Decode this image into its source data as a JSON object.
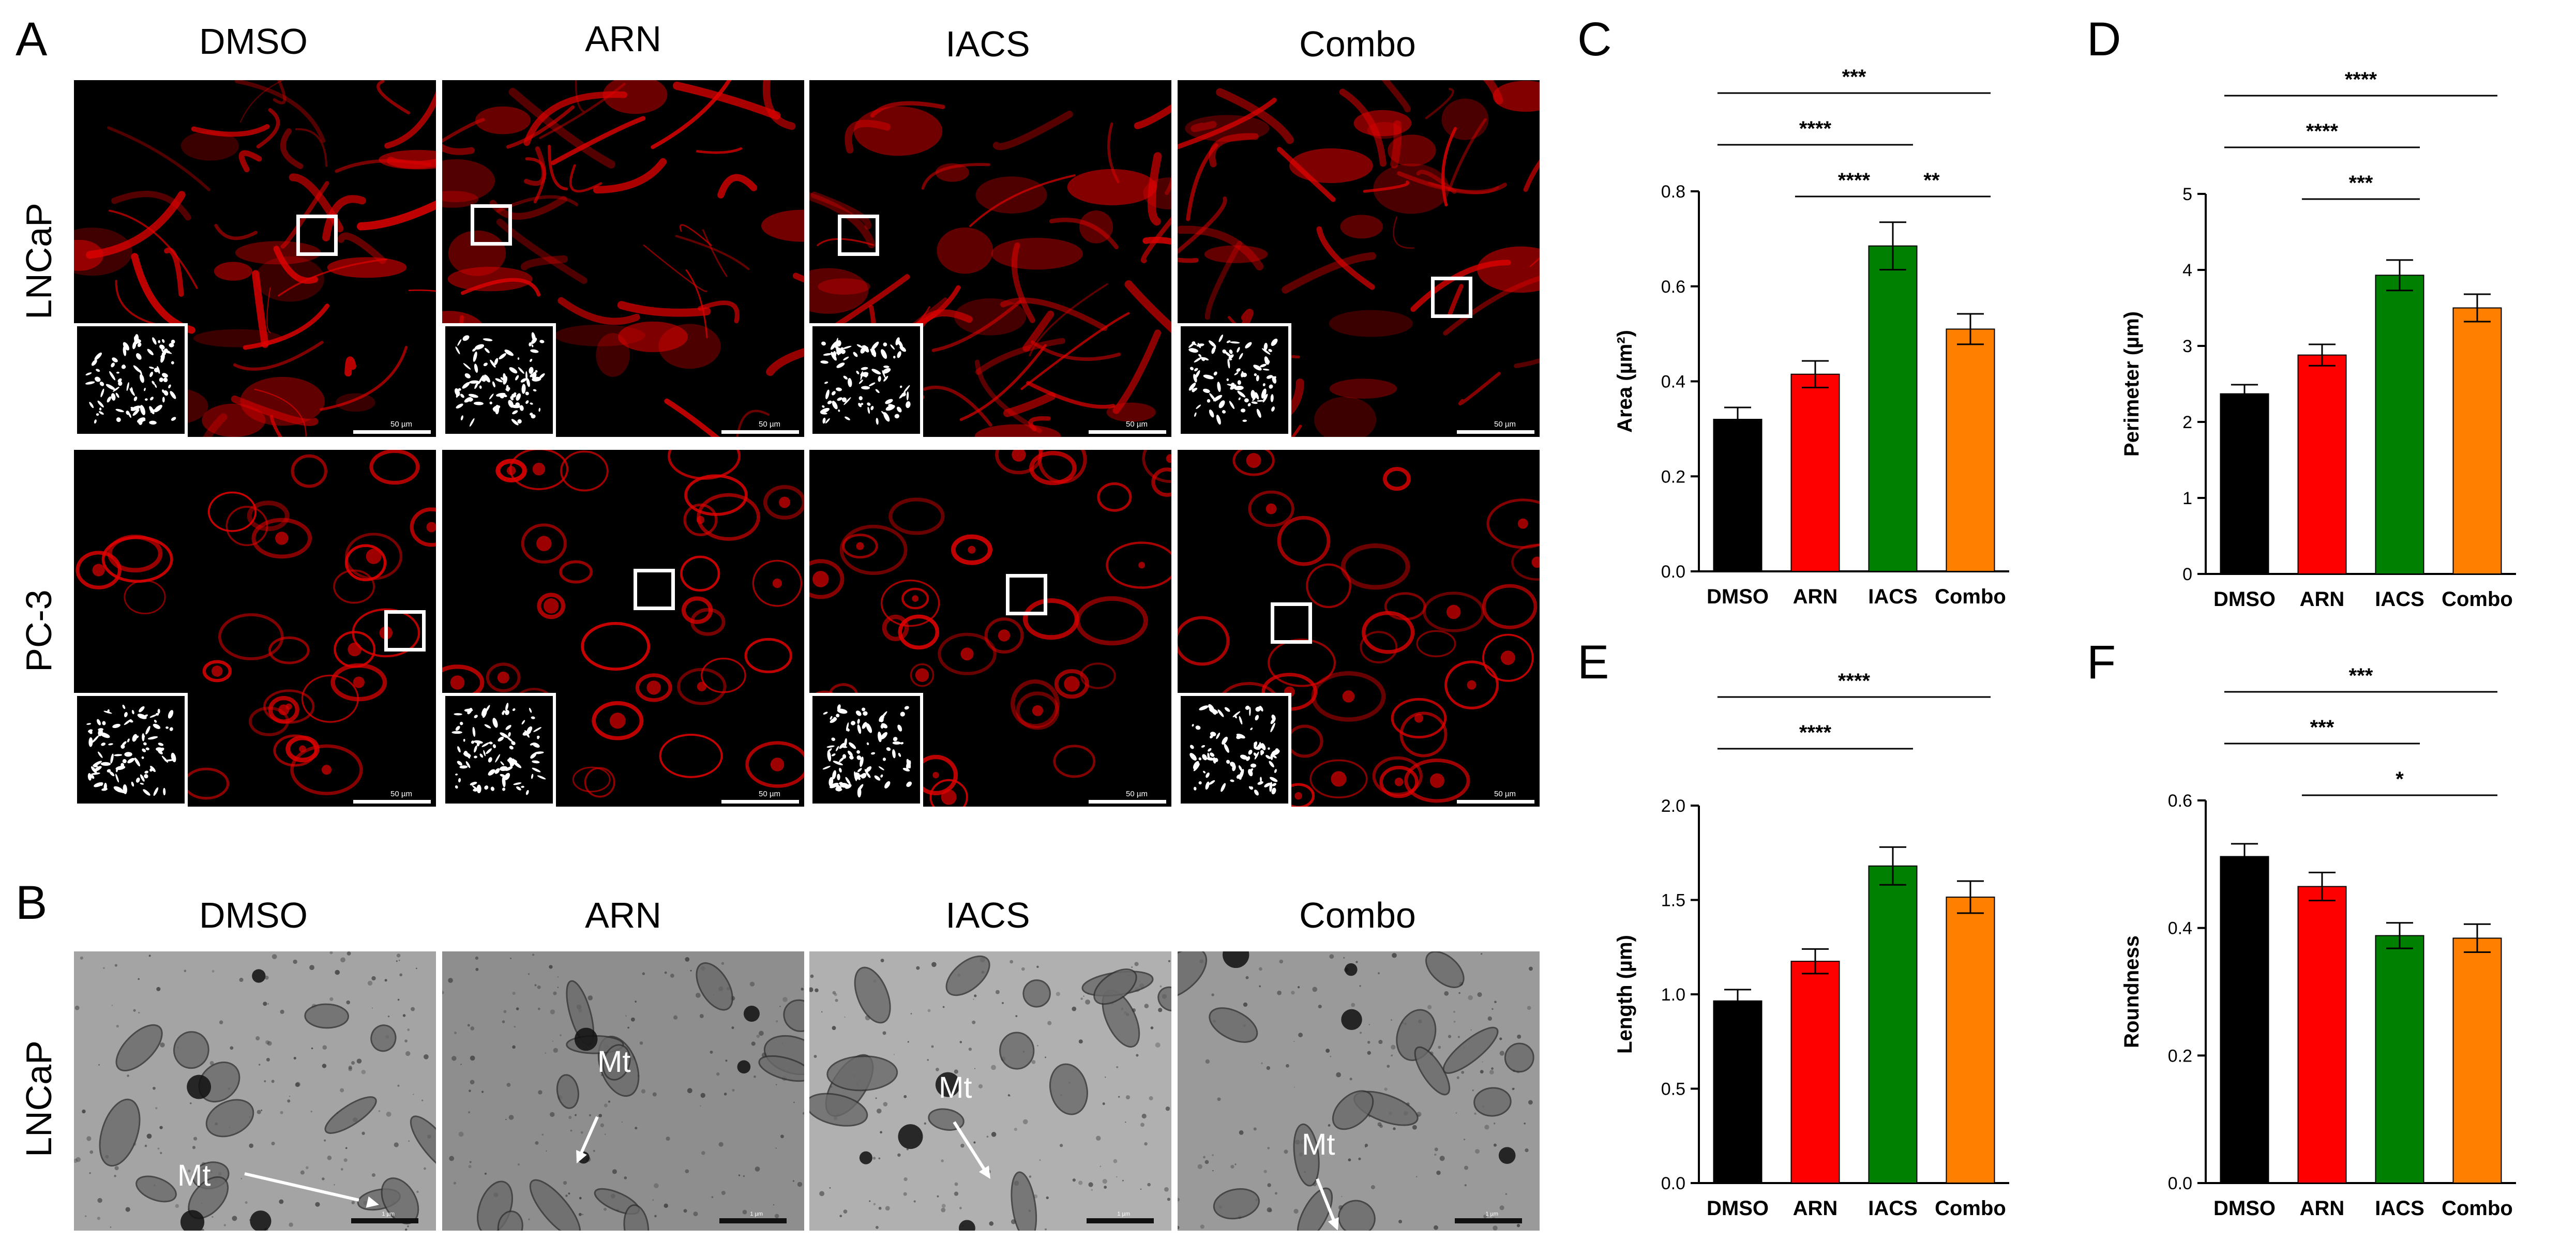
{
  "panel_letters": {
    "a": "A",
    "b": "B",
    "c": "C",
    "d": "D",
    "e": "E",
    "f": "F"
  },
  "panel_a": {
    "columns": [
      "DMSO",
      "ARN",
      "IACS",
      "Combo"
    ],
    "rows": [
      "LNCaP",
      "PC-3"
    ],
    "scale_label": "50 µm"
  },
  "panel_b": {
    "columns": [
      "DMSO",
      "ARN",
      "IACS",
      "Combo"
    ],
    "row": "LNCaP",
    "mt_label": "Mt",
    "scale_label": "1 µm"
  },
  "colors": {
    "DMSO": "#000000",
    "ARN": "#ff0000",
    "IACS": "#008000",
    "Combo": "#ff8000",
    "fluor": "#e00000",
    "inset_bg": "#000000",
    "inset_fg": "#ffffff"
  },
  "chart_data": [
    {
      "id": "C",
      "type": "bar",
      "categories": [
        "DMSO",
        "ARN",
        "IACS",
        "Combo"
      ],
      "values": [
        0.32,
        0.415,
        0.685,
        0.51
      ],
      "errors": [
        0.025,
        0.028,
        0.05,
        0.032
      ],
      "ylabel": "Area (µm²)",
      "ylim": [
        0,
        0.8
      ],
      "yticks": [
        "0.0",
        "0.2",
        "0.4",
        "0.6",
        "0.8"
      ],
      "significance": [
        {
          "from": 0,
          "to": 3,
          "label": "***"
        },
        {
          "from": 0,
          "to": 2,
          "label": "****"
        },
        {
          "from": 1,
          "to": 2,
          "label": "****"
        },
        {
          "from": 2,
          "to": 3,
          "label": "**"
        }
      ]
    },
    {
      "id": "D",
      "type": "bar",
      "categories": [
        "DMSO",
        "ARN",
        "IACS",
        "Combo"
      ],
      "values": [
        2.37,
        2.88,
        3.93,
        3.5
      ],
      "errors": [
        0.12,
        0.14,
        0.2,
        0.18
      ],
      "ylabel": "Perimeter (µm)",
      "ylim": [
        0,
        5
      ],
      "yticks": [
        "0",
        "1",
        "2",
        "3",
        "4",
        "5"
      ],
      "significance": [
        {
          "from": 0,
          "to": 3,
          "label": "****"
        },
        {
          "from": 0,
          "to": 2,
          "label": "****"
        },
        {
          "from": 1,
          "to": 2,
          "label": "***"
        }
      ]
    },
    {
      "id": "E",
      "type": "bar",
      "categories": [
        "DMSO",
        "ARN",
        "IACS",
        "Combo"
      ],
      "values": [
        0.965,
        1.175,
        1.68,
        1.515
      ],
      "errors": [
        0.06,
        0.065,
        0.1,
        0.085
      ],
      "ylabel": "Length (µm)",
      "ylim": [
        0,
        2.0
      ],
      "yticks": [
        "0.0",
        "0.5",
        "1.0",
        "1.5",
        "2.0"
      ],
      "significance": [
        {
          "from": 0,
          "to": 3,
          "label": "****"
        },
        {
          "from": 0,
          "to": 2,
          "label": "****"
        }
      ]
    },
    {
      "id": "F",
      "type": "bar",
      "categories": [
        "DMSO",
        "ARN",
        "IACS",
        "Combo"
      ],
      "values": [
        0.512,
        0.465,
        0.388,
        0.384
      ],
      "errors": [
        0.02,
        0.022,
        0.02,
        0.022
      ],
      "ylabel": "Roundness",
      "ylim": [
        0,
        0.6
      ],
      "yticks": [
        "0.0",
        "0.2",
        "0.4",
        "0.6"
      ],
      "significance": [
        {
          "from": 0,
          "to": 3,
          "label": "***"
        },
        {
          "from": 0,
          "to": 2,
          "label": "***"
        },
        {
          "from": 1,
          "to": 3,
          "label": "*"
        }
      ]
    }
  ]
}
